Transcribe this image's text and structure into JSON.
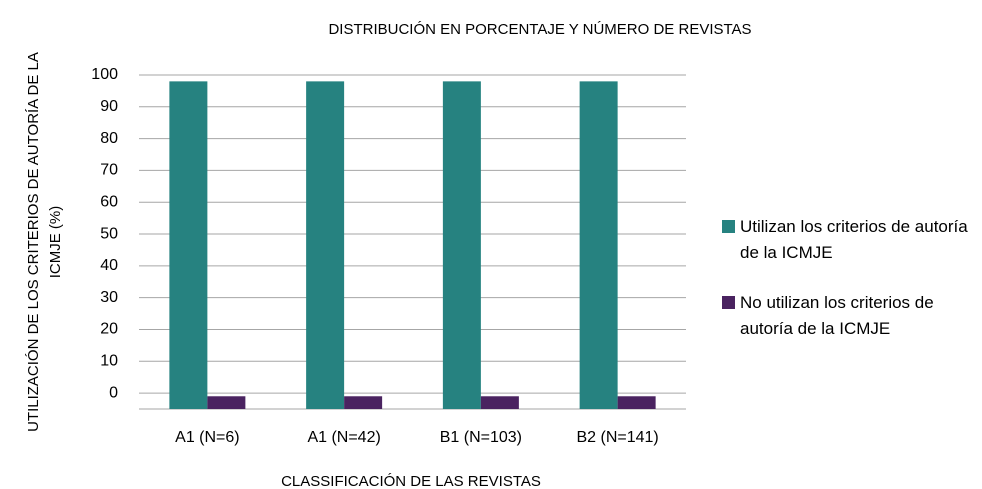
{
  "chart_data": {
    "type": "bar",
    "title": "DISTRIBUCIÓN EN PORCENTAJE Y NÚMERO DE REVISTAS",
    "x_label": "CLASSIFICACIÓN DE LAS REVISTAS",
    "y_label": "UTILIZACIÓN DE LOS CRITERIOS DE AUTORÍA DE LA ICMJE (%)",
    "categories": [
      "A1 (N=6)",
      "A1 (N=42)",
      "B1 (N=103)",
      "B2 (N=141)"
    ],
    "series": [
      {
        "name": "Utilizan los criterios de autoría de la ICMJE",
        "color": "#268280",
        "values": [
          98,
          98,
          98,
          98
        ]
      },
      {
        "name": "No utilizan los criterios de autoría de la ICMJE",
        "color": "#4a2360",
        "values": [
          -1,
          -1,
          -1,
          -1
        ]
      }
    ],
    "ylim": [
      -5,
      100
    ],
    "yticks": [
      0,
      10,
      20,
      30,
      40,
      50,
      60,
      70,
      80,
      90,
      100
    ],
    "grid": true,
    "legend": "right"
  }
}
